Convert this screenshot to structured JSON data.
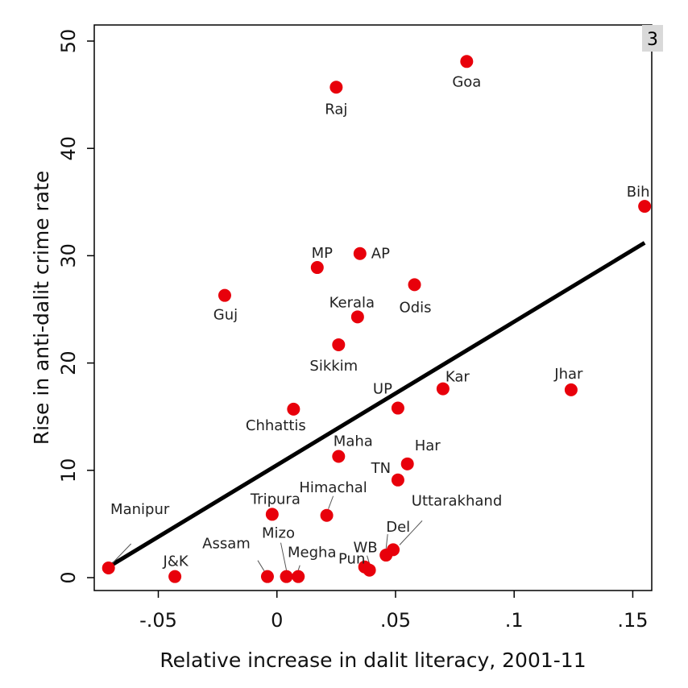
{
  "chart_data": {
    "type": "scatter",
    "title": "",
    "panel_label": "3",
    "xlabel": "Relative increase in dalit literacy, 2001-11",
    "ylabel": "Rise in anti-dalit crime rate",
    "xlim": [
      -0.077,
      0.158
    ],
    "ylim": [
      -1.2,
      51.5
    ],
    "x_ticks": [
      {
        "value": -0.05,
        "label": "-.05"
      },
      {
        "value": 0,
        "label": "0"
      },
      {
        "value": 0.05,
        "label": ".05"
      },
      {
        "value": 0.1,
        "label": ".1"
      },
      {
        "value": 0.15,
        "label": ".15"
      }
    ],
    "y_ticks": [
      {
        "value": 0,
        "label": "0"
      },
      {
        "value": 10,
        "label": "10"
      },
      {
        "value": 20,
        "label": "20"
      },
      {
        "value": 30,
        "label": "30"
      },
      {
        "value": 40,
        "label": "40"
      },
      {
        "value": 50,
        "label": "50"
      }
    ],
    "fit_line": {
      "x": [
        -0.071,
        0.155
      ],
      "y": [
        1.0,
        31.2
      ]
    },
    "point_color": "#e8000b",
    "line_color": "#000000",
    "points": [
      {
        "label": "Goa",
        "x": 0.08,
        "y": 48.1
      },
      {
        "label": "Raj",
        "x": 0.025,
        "y": 45.7
      },
      {
        "label": "Bih",
        "x": 0.155,
        "y": 34.6
      },
      {
        "label": "AP",
        "x": 0.035,
        "y": 30.2
      },
      {
        "label": "MP",
        "x": 0.017,
        "y": 28.9
      },
      {
        "label": "Odis",
        "x": 0.058,
        "y": 27.3
      },
      {
        "label": "Guj",
        "x": -0.022,
        "y": 26.3
      },
      {
        "label": "Kerala",
        "x": 0.034,
        "y": 24.3
      },
      {
        "label": "Sikkim",
        "x": 0.026,
        "y": 21.7
      },
      {
        "label": "Kar",
        "x": 0.07,
        "y": 17.6
      },
      {
        "label": "Jhar",
        "x": 0.124,
        "y": 17.5
      },
      {
        "label": "UP",
        "x": 0.051,
        "y": 15.8
      },
      {
        "label": "Chhattis",
        "x": 0.007,
        "y": 15.7
      },
      {
        "label": "Maha",
        "x": 0.026,
        "y": 11.3
      },
      {
        "label": "Har",
        "x": 0.055,
        "y": 10.6
      },
      {
        "label": "TN",
        "x": 0.051,
        "y": 9.1
      },
      {
        "label": "Tripura",
        "x": -0.002,
        "y": 5.9
      },
      {
        "label": "Himachal",
        "x": 0.021,
        "y": 5.8
      },
      {
        "label": "Uttarakhand",
        "x": 0.049,
        "y": 2.6
      },
      {
        "label": "Del",
        "x": 0.046,
        "y": 2.1
      },
      {
        "label": "WB",
        "x": 0.039,
        "y": 0.7
      },
      {
        "label": "Pun",
        "x": 0.037,
        "y": 1.0
      },
      {
        "label": "Manipur",
        "x": -0.071,
        "y": 0.9
      },
      {
        "label": "J&K",
        "x": -0.043,
        "y": 0.1
      },
      {
        "label": "Assam",
        "x": -0.004,
        "y": 0.1
      },
      {
        "label": "Mizo",
        "x": 0.004,
        "y": 0.1
      },
      {
        "label": "Megha",
        "x": 0.009,
        "y": 0.1
      }
    ]
  }
}
